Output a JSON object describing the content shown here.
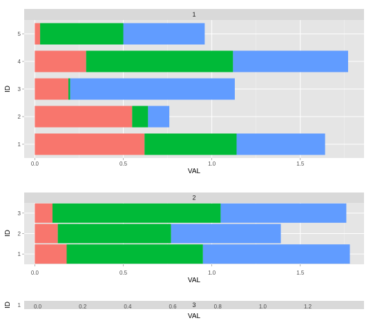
{
  "colors": {
    "background": "#ffffff",
    "panel": "#e5e5e5",
    "strip": "#d9d9d9",
    "grid_major": "#ffffff",
    "grid_minor": "#f2f2f2",
    "seg_1": "#f8766d",
    "seg_2": "#00ba38",
    "seg_3": "#619cff"
  },
  "chart_data": [
    {
      "type": "bar",
      "orientation": "horizontal",
      "stacked": true,
      "facet": "1",
      "xlabel": "VAL",
      "ylabel": "ID",
      "xlim": [
        -0.06,
        1.86
      ],
      "xticks": [
        0.0,
        0.5,
        1.0,
        1.5
      ],
      "x_tick_labels": [
        "0.0",
        "0.5",
        "1.0",
        "1.5"
      ],
      "categories": [
        "1",
        "2",
        "3",
        "4",
        "5"
      ],
      "series": [
        {
          "color": "#f8766d",
          "values": [
            0.62,
            0.55,
            0.19,
            0.29,
            0.03
          ]
        },
        {
          "color": "#00ba38",
          "values": [
            0.52,
            0.09,
            0.01,
            0.83,
            0.47
          ]
        },
        {
          "color": "#619cff",
          "values": [
            0.5,
            0.12,
            0.93,
            0.65,
            0.46
          ]
        }
      ],
      "grid": true
    },
    {
      "type": "bar",
      "orientation": "horizontal",
      "stacked": true,
      "facet": "2",
      "xlabel": "VAL",
      "ylabel": "ID",
      "xlim": [
        -0.06,
        1.86
      ],
      "xticks": [
        0.0,
        0.5,
        1.0,
        1.5
      ],
      "x_tick_labels": [
        "0.0",
        "0.5",
        "1.0",
        "1.5"
      ],
      "categories": [
        "1",
        "2",
        "3"
      ],
      "series": [
        {
          "color": "#f8766d",
          "values": [
            0.18,
            0.13,
            0.1
          ]
        },
        {
          "color": "#00ba38",
          "values": [
            0.77,
            0.64,
            0.95
          ]
        },
        {
          "color": "#619cff",
          "values": [
            0.83,
            0.62,
            0.71
          ]
        }
      ],
      "grid": true
    },
    {
      "type": "bar",
      "orientation": "horizontal",
      "stacked": true,
      "facet": "3",
      "xlabel": "VAL",
      "ylabel": "ID",
      "xlim": [
        -0.06,
        1.45
      ],
      "xticks": [
        0.0,
        0.2,
        0.4,
        0.6,
        0.8,
        1.0,
        1.2
      ],
      "x_tick_labels": [
        "0.0",
        "0.2",
        "0.4",
        "0.6",
        "0.8",
        "1.0",
        "1.2"
      ],
      "categories": [
        "1"
      ],
      "series": [],
      "grid": true
    }
  ]
}
